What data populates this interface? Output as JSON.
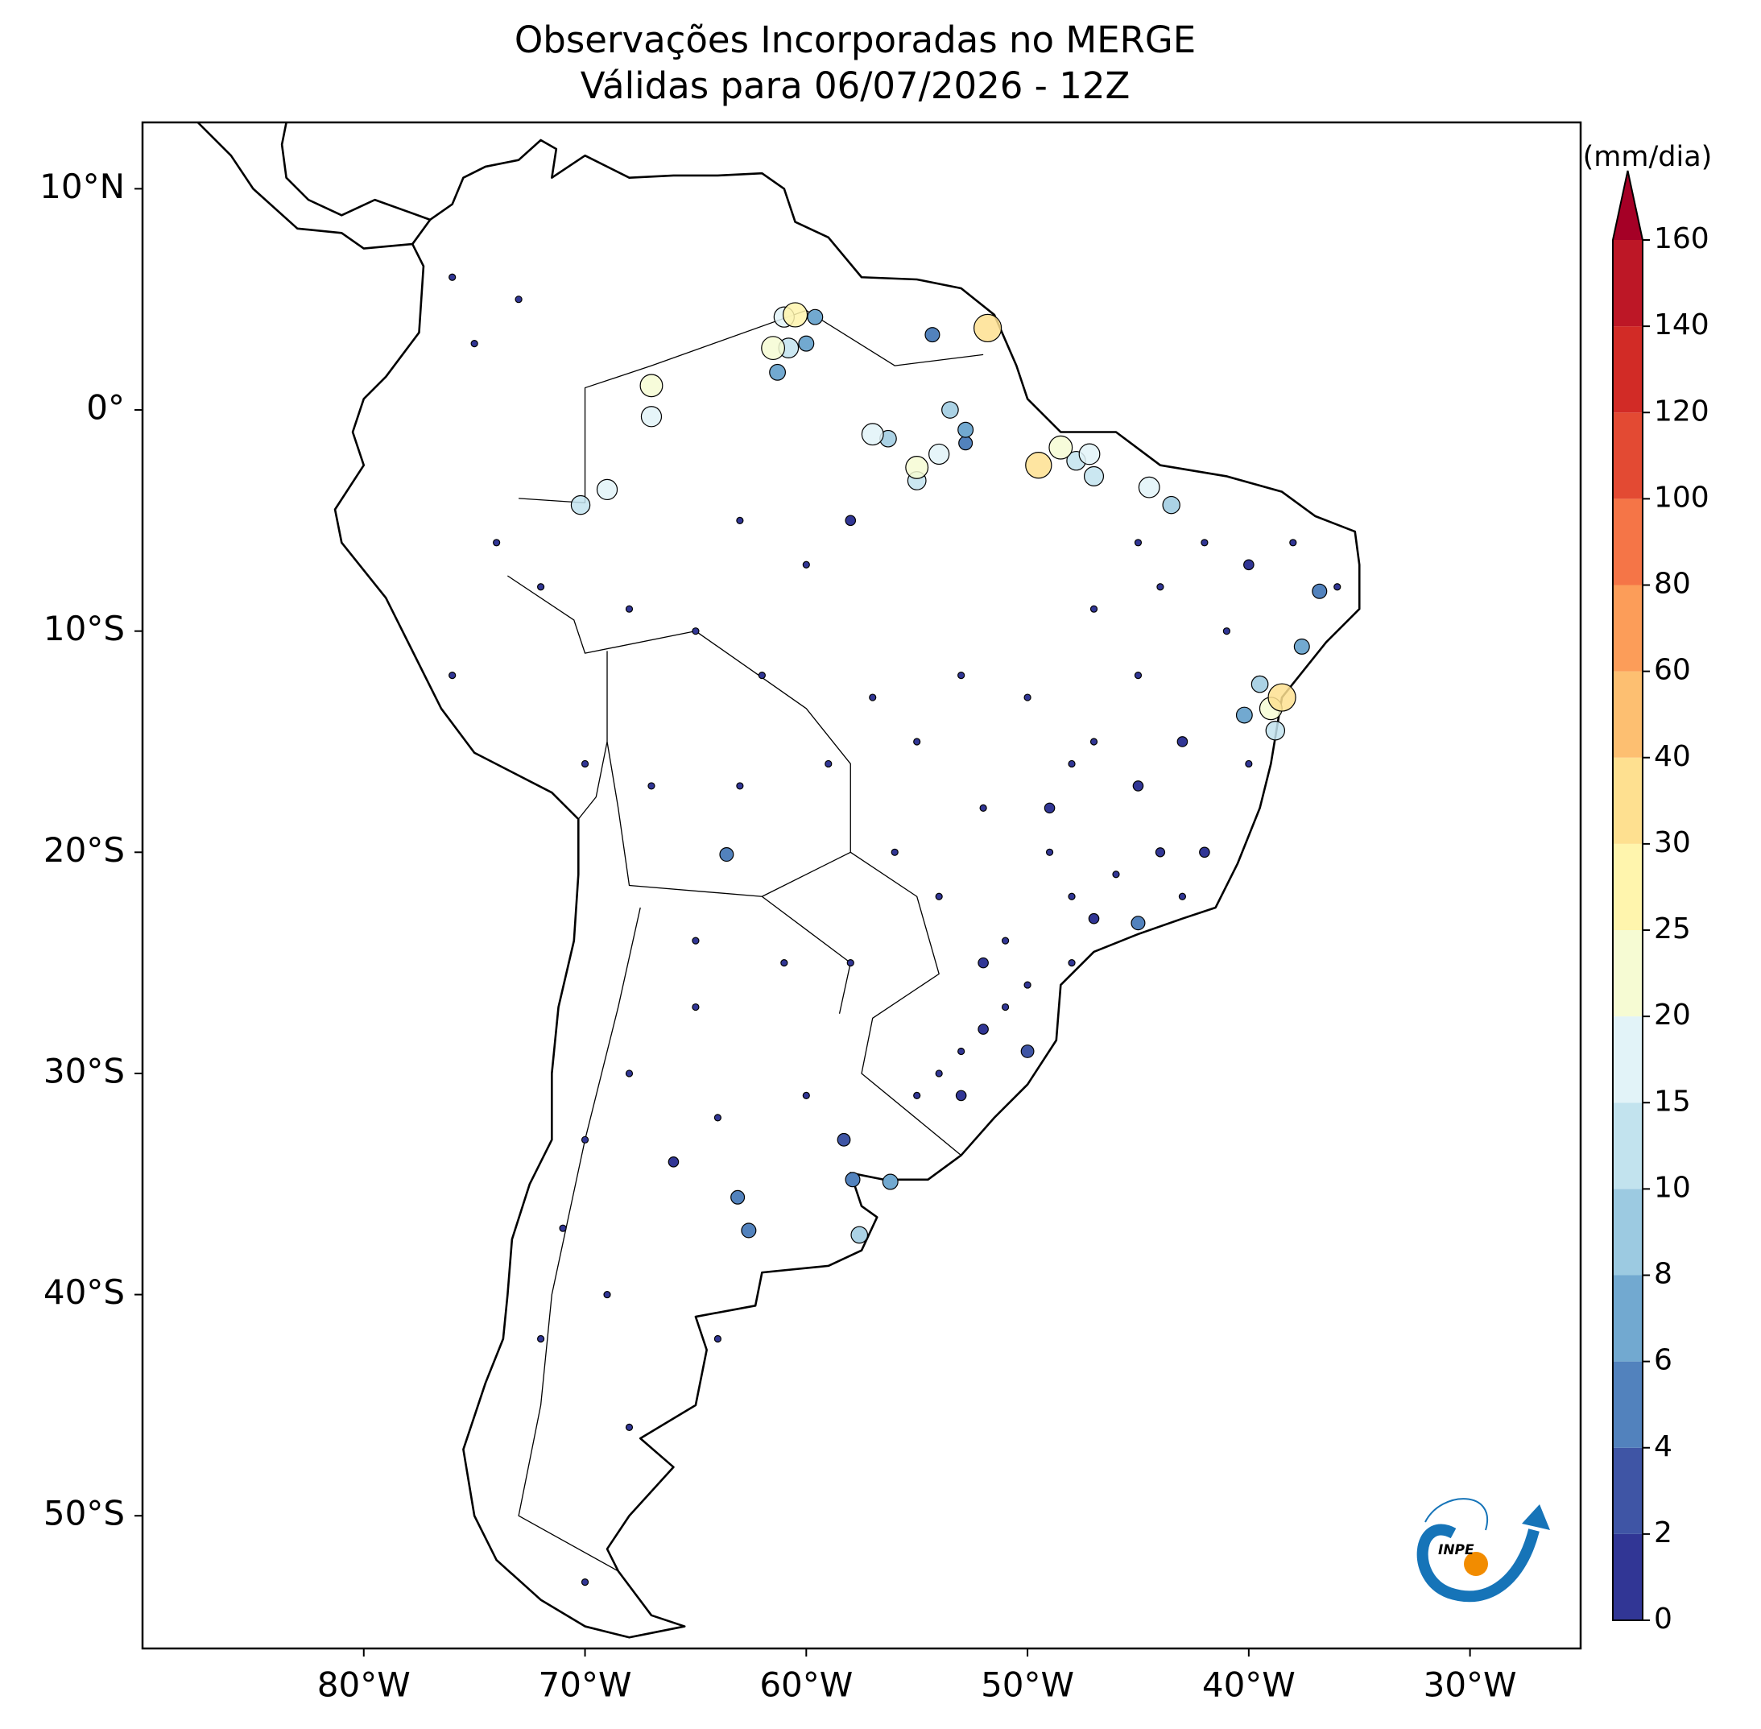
{
  "chart_data": {
    "type": "scatter",
    "title": [
      "Observações Incorporadas no MERGE",
      "Válidas para 06/07/2026 - 12Z"
    ],
    "xlim": [
      -90,
      -25
    ],
    "ylim": [
      -56,
      13
    ],
    "xticks": [
      {
        "value": -80,
        "label": "80°W"
      },
      {
        "value": -70,
        "label": "70°W"
      },
      {
        "value": -60,
        "label": "60°W"
      },
      {
        "value": -50,
        "label": "50°W"
      },
      {
        "value": -40,
        "label": "40°W"
      },
      {
        "value": -30,
        "label": "30°W"
      }
    ],
    "yticks": [
      {
        "value": 10,
        "label": "10°N"
      },
      {
        "value": 0,
        "label": "0°"
      },
      {
        "value": -10,
        "label": "10°S"
      },
      {
        "value": -20,
        "label": "20°S"
      },
      {
        "value": -30,
        "label": "30°S"
      },
      {
        "value": -40,
        "label": "40°S"
      },
      {
        "value": -50,
        "label": "50°S"
      }
    ],
    "colorbar": {
      "label": "(mm/dia)",
      "levels": [
        0,
        2,
        4,
        6,
        8,
        10,
        15,
        20,
        25,
        30,
        40,
        60,
        80,
        100,
        120,
        140,
        160
      ],
      "colors": [
        "#313695",
        "#3f55a5",
        "#5282bd",
        "#72a9d0",
        "#9ccae1",
        "#c2e3ee",
        "#e2f3f8",
        "#f6fbd3",
        "#fff5ad",
        "#fee090",
        "#fdbf71",
        "#fc9d59",
        "#f57547",
        "#e34a33",
        "#d22b26",
        "#bd1726"
      ],
      "extend_color": "#a50026"
    },
    "stations": {
      "lon": [
        -38.5,
        -39,
        -38.8,
        -49.5,
        -48.5,
        -51.8,
        -60.5,
        -61.5,
        -60.8,
        -61,
        -67,
        -67,
        -70.2,
        -69,
        -57,
        -55,
        -54,
        -47.2,
        -47,
        -44.5,
        -43.5,
        -47.8,
        -55,
        -56.3,
        -60,
        -61.3,
        -59.6,
        -53.5,
        -52.8,
        -54.3,
        -52.8,
        -39.5,
        -37.6,
        -36.8,
        -40.2,
        -57.9,
        -56.2,
        -57.6,
        -63.6,
        -62.6,
        -63.1,
        -58.3,
        -45,
        -50,
        -48,
        -47,
        -46,
        -44,
        -43,
        -42,
        -49,
        -51,
        -52,
        -53,
        -50,
        -51,
        -52,
        -54,
        -55,
        -53,
        -48,
        -47,
        -49,
        -45,
        -44,
        -42,
        -40,
        -38,
        -36,
        -41,
        -43,
        -40,
        -55,
        -57,
        -53,
        -59,
        -56,
        -54,
        -62,
        -65,
        -68,
        -72,
        -63,
        -60,
        -58,
        -65,
        -68,
        -64,
        -60,
        -66,
        -70,
        -71,
        -72,
        -69,
        -68,
        -70,
        -65,
        -67,
        -70,
        -76,
        -74,
        -75,
        -73,
        -76,
        -64,
        -58,
        -61,
        -63,
        -45,
        -47,
        -50,
        -52,
        -45,
        -48
      ],
      "lat": [
        -13,
        -13.5,
        -14.5,
        -2.5,
        -1.7,
        3.7,
        4.3,
        2.8,
        2.8,
        4.2,
        1.1,
        -0.3,
        -4.3,
        -3.6,
        -1.1,
        -2.6,
        -2,
        -2,
        -3,
        -3.5,
        -4.3,
        -2.3,
        -3.2,
        -1.3,
        3,
        1.7,
        4.2,
        0,
        -0.9,
        3.4,
        -1.5,
        -12.4,
        -10.7,
        -8.2,
        -13.8,
        -34.8,
        -34.9,
        -37.3,
        -20.1,
        -37.1,
        -35.6,
        -33,
        -23.2,
        -29,
        -22,
        -23,
        -21,
        -20,
        -22,
        -20,
        -20,
        -27,
        -28,
        -29,
        -26,
        -24,
        -25,
        -30,
        -31,
        -31,
        -16,
        -15,
        -18,
        -12,
        -8,
        -6,
        -7,
        -6,
        -8,
        -10,
        -15,
        -16,
        -15,
        -13,
        -12,
        -16,
        -20,
        -22,
        -12,
        -10,
        -9,
        -8,
        -5,
        -7,
        -5,
        -27,
        -30,
        -32,
        -31,
        -34,
        -33,
        -37,
        -42,
        -40,
        -46,
        -53,
        -24,
        -17,
        -16,
        -12,
        -6,
        3,
        5,
        6,
        -42,
        -25,
        -25,
        -17,
        -6,
        -9,
        -13,
        -18,
        -17,
        -25
      ],
      "values": [
        35,
        20,
        12,
        30,
        22,
        35,
        25,
        22,
        14,
        15,
        20,
        15,
        12,
        15,
        18,
        20,
        15,
        16,
        13,
        16,
        9,
        12,
        11,
        8,
        6,
        7,
        6,
        8,
        6,
        5,
        4,
        8,
        6,
        5,
        7,
        5,
        6,
        8,
        4,
        5,
        4,
        3,
        4,
        3,
        0,
        1,
        0,
        0.5,
        0,
        1,
        0,
        0,
        1,
        0,
        0,
        0,
        1,
        0,
        0,
        1,
        0,
        0,
        1,
        0,
        0,
        0,
        1,
        0,
        0,
        0,
        1,
        0,
        0,
        0,
        0,
        0,
        0,
        0,
        0,
        0,
        0,
        0,
        0,
        0,
        1,
        0,
        0,
        0,
        0,
        1,
        0,
        0,
        0,
        0,
        0,
        0,
        0,
        0,
        0,
        0,
        0,
        0,
        0,
        0,
        0,
        0,
        0,
        0,
        0,
        0,
        0,
        0,
        1,
        0
      ]
    },
    "logo": "INPE"
  }
}
